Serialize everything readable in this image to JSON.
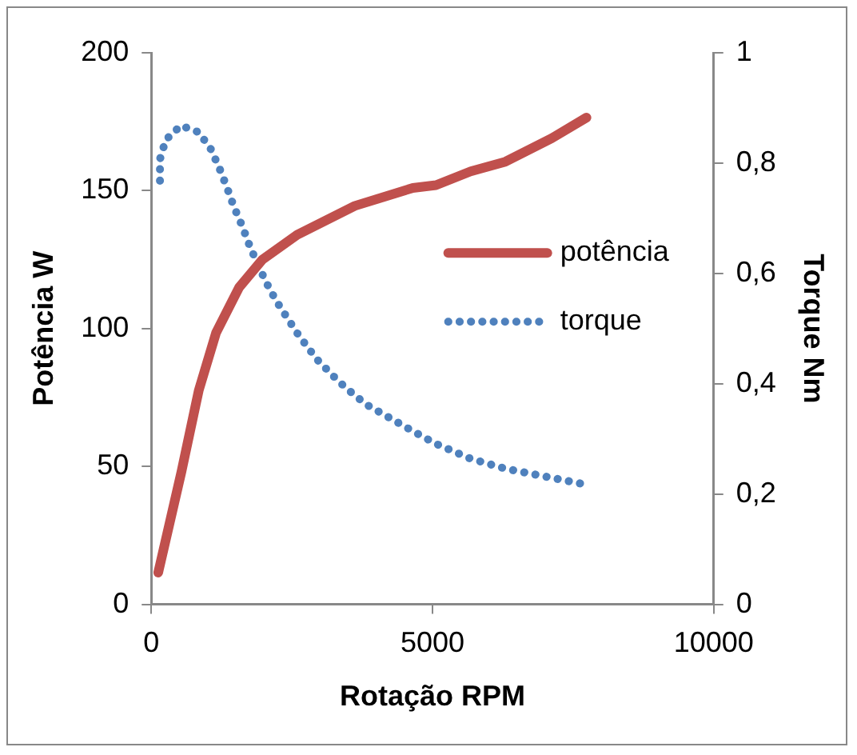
{
  "chart_data": {
    "type": "line",
    "xlabel": "Rotação RPM",
    "ylabel": "Potência W",
    "y2label": "Torque Nm",
    "xlim": [
      0,
      10000
    ],
    "xticks": [
      0,
      5000,
      10000
    ],
    "ylim": [
      0,
      200
    ],
    "yticks": [
      0,
      50,
      100,
      150,
      200
    ],
    "y2lim": [
      0,
      1
    ],
    "y2ticks": [
      0,
      {
        "value": 0.2,
        "label": "0,2"
      },
      {
        "value": 0.4,
        "label": "0,4"
      },
      {
        "value": 0.6,
        "label": "0,6"
      },
      {
        "value": 0.8,
        "label": "0,8"
      },
      1
    ],
    "grid": false,
    "legend": "right",
    "marker": "none",
    "series": [
      {
        "name": "potência",
        "color": "#c0504d",
        "line_style": "solid",
        "x": [
          123,
          535,
          843,
          1152,
          1564,
          1975,
          2593,
          3620,
          4651,
          5062,
          5679,
          6296,
          7120,
          7738
        ],
        "values": [
          11.5,
          48,
          77.5,
          98.5,
          115,
          125,
          134,
          144.5,
          151,
          152,
          157,
          160.5,
          169,
          176.5
        ]
      },
      {
        "name": "torque",
        "color": "#4f81bd",
        "line_style": "dotted",
        "axis": "y2",
        "x": [
          154,
          154,
          256,
          525,
          843,
          1060,
          1214,
          1348,
          1472,
          1616,
          1749,
          1893,
          2047,
          2222,
          2407,
          2593,
          2788,
          2973,
          3159,
          3313,
          3467,
          3630,
          3827,
          4651,
          5062,
          5679,
          6296,
          7685
        ],
        "values": [
          0.768,
          0.807,
          0.842,
          0.868,
          0.856,
          0.825,
          0.79,
          0.755,
          0.72,
          0.686,
          0.65,
          0.616,
          0.583,
          0.55,
          0.521,
          0.492,
          0.465,
          0.441,
          0.422,
          0.406,
          0.392,
          0.378,
          0.362,
          0.314,
          0.291,
          0.264,
          0.246,
          0.218
        ]
      }
    ]
  }
}
